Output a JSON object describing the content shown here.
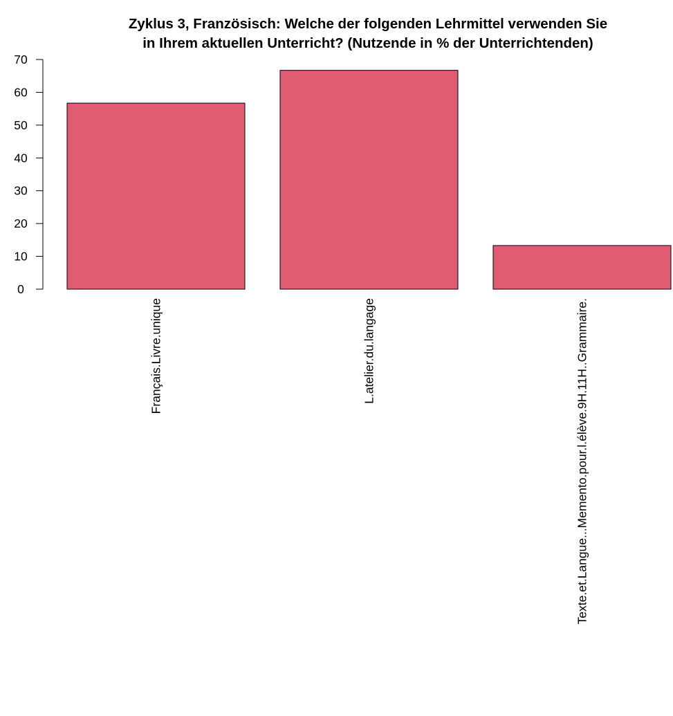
{
  "chart_data": {
    "type": "bar",
    "title_lines": [
      "Zyklus 3, Französisch: Welche der folgenden Lehrmittel verwenden Sie",
      "in Ihrem aktuellen Unterricht? (Nutzende in % der Unterrichtenden)"
    ],
    "categories": [
      "Français.Livre.unique",
      "L.atelier.du.langage",
      "Texte.et.Langue...Memento.pour.l.élève.9H.11H..Grammaire."
    ],
    "values": [
      56.7,
      66.7,
      13.3
    ],
    "ylim": [
      0,
      70
    ],
    "yticks": [
      0,
      10,
      20,
      30,
      40,
      50,
      60,
      70
    ],
    "bar_color": "#E05C72",
    "grid": false
  }
}
